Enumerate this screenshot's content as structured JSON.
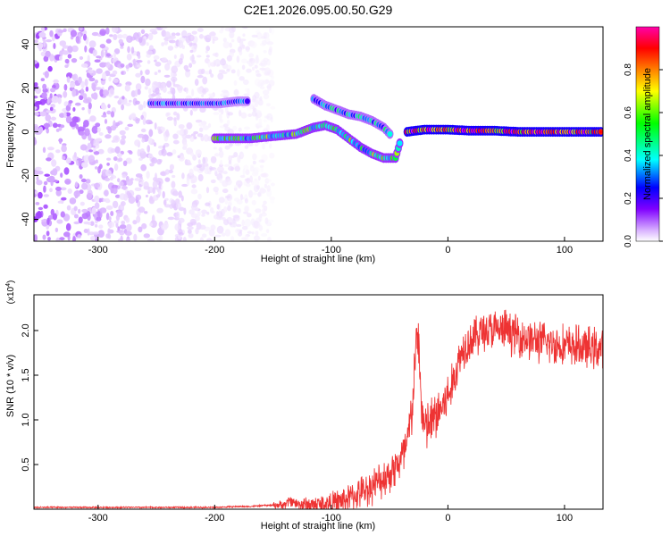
{
  "title": "C2E1.2026.095.00.50.G29",
  "chart_data": [
    {
      "type": "heatmap",
      "xlabel": "Height of straight line (km)",
      "ylabel": "Frequency (Hz)",
      "xlim": [
        -355,
        133
      ],
      "ylim": [
        -50,
        48
      ],
      "xticks": [
        -300,
        -200,
        -100,
        0,
        100
      ],
      "yticks": [
        -40,
        -20,
        0,
        20,
        40
      ],
      "colorbar": {
        "label": "Normalized spectral amplitude",
        "range": [
          0,
          1
        ],
        "ticks": [
          "0.0",
          "0.2",
          "0.4",
          "0.6",
          "0.8"
        ],
        "colormap": [
          "#ffffff",
          "#d9b3ff",
          "#8000ff",
          "#0000ff",
          "#00ffff",
          "#00ff00",
          "#ffff00",
          "#ff8000",
          "#ff0000",
          "#ff00ff"
        ]
      },
      "features": [
        {
          "name": "noise",
          "x_range": [
            -355,
            -150
          ],
          "freq_range": [
            -50,
            48
          ],
          "amplitude": 0.12
        },
        {
          "name": "upper-track",
          "x": [
            -255,
            -240,
            -225,
            -210,
            -195,
            -180,
            -170
          ],
          "freq": [
            13,
            13,
            13,
            13,
            13,
            14,
            14
          ],
          "amplitude": 0.38
        },
        {
          "name": "descending-track",
          "x": [
            -115,
            -105,
            -95,
            -85,
            -75,
            -65,
            -55,
            -48
          ],
          "freq": [
            15,
            12,
            10,
            8,
            7,
            5,
            2,
            -2
          ],
          "amplitude": 0.45
        },
        {
          "name": "lower-track",
          "x": [
            -200,
            -190,
            -170,
            -150,
            -130,
            -115,
            -105,
            -95,
            -85,
            -75,
            -65,
            -55,
            -45,
            -40
          ],
          "freq": [
            -3,
            -3,
            -3,
            -2,
            -1,
            2,
            3,
            1,
            -3,
            -7,
            -10,
            -12,
            -12,
            -3
          ],
          "amplitude": 0.55
        },
        {
          "name": "carrier",
          "x": [
            -35,
            -20,
            0,
            20,
            40,
            60,
            80,
            100,
            120,
            133
          ],
          "freq": [
            0,
            1,
            1,
            0.5,
            0.5,
            0,
            0,
            0,
            0,
            0
          ],
          "amplitude": 0.9
        }
      ]
    },
    {
      "type": "line",
      "xlabel": "Height of straight line (km)",
      "ylabel": "SNR (10 * v/v)",
      "multiplier": "(x10^4)",
      "xlim": [
        -355,
        133
      ],
      "ylim": [
        0,
        2.4
      ],
      "xticks": [
        -300,
        -200,
        -100,
        0,
        100
      ],
      "yticks": [
        0.5,
        1.0,
        1.5,
        2.0
      ],
      "ytick_labels": [
        "0.5",
        "1.0",
        "1.5",
        "2.0"
      ],
      "color": "#ee3333",
      "series": [
        {
          "x": [
            -355,
            -300,
            -250,
            -200,
            -180,
            -170,
            -160,
            -140,
            -135,
            -130,
            -120,
            -100,
            -90,
            -80,
            -70,
            -60,
            -50,
            -40,
            -35,
            -30,
            -28,
            -25,
            -23,
            -20,
            -15,
            -10,
            -5,
            0,
            5,
            10,
            15,
            20,
            30,
            40,
            50,
            60,
            70,
            80,
            90,
            100,
            110,
            120,
            133
          ],
          "y": [
            0.02,
            0.02,
            0.02,
            0.02,
            0.03,
            0.03,
            0.04,
            0.05,
            0.1,
            0.06,
            0.05,
            0.06,
            0.1,
            0.15,
            0.22,
            0.3,
            0.4,
            0.55,
            0.7,
            1.2,
            1.75,
            1.9,
            1.2,
            0.9,
            0.95,
            1.05,
            1.15,
            1.25,
            1.45,
            1.7,
            1.85,
            1.9,
            2.0,
            2.0,
            2.0,
            1.95,
            1.9,
            1.87,
            1.85,
            1.83,
            1.82,
            1.8,
            1.8
          ]
        }
      ]
    }
  ]
}
